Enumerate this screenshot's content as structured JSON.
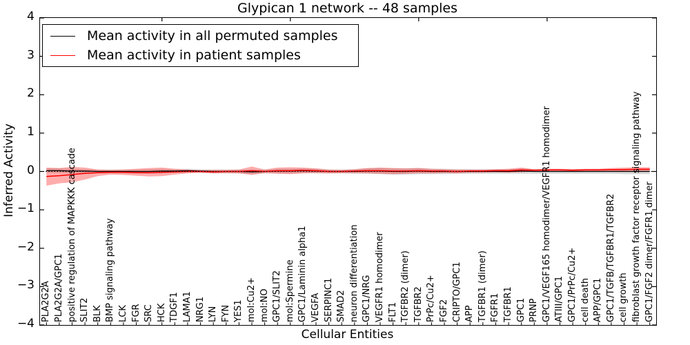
{
  "chart_data": {
    "type": "line",
    "title": "Glypican 1 network -- 48 samples",
    "xlabel": "Cellular Entities",
    "ylabel": "Inferred Activity",
    "ylim": [
      -4,
      4
    ],
    "ytick_values": [
      4,
      3,
      2,
      1,
      0,
      -1,
      -2,
      -3,
      -4
    ],
    "ytick_labels": [
      "4",
      "3",
      "2",
      "1",
      "0",
      "−1",
      "−2",
      "−3",
      "−4"
    ],
    "grid": false,
    "legend_position": "upper left",
    "zero_line": "dotted",
    "categories": [
      "PLA2G2A",
      "PLA2G2A/GPC1",
      "positive regulation of MAPKKK cascade",
      "SLIT2",
      "BLK",
      "BMP signaling pathway",
      "LCK",
      "FGR",
      "SRC",
      "HCK",
      "TDGF1",
      "LAMA1",
      "NRG1",
      "LYN",
      "FYN",
      "YES1",
      "mol:Cu2+",
      "mol:NO",
      "GPC1/SLIT2",
      "mol:Spermine",
      "GPC1/Laminin alpha1",
      "VEGFA",
      "SERPINC1",
      "SMAD2",
      "neuron differentiation",
      "GPC1/NRG",
      "VEGFR1 homodimer",
      "FLT1",
      "TGFBR2 (dimer)",
      "TGFBR2",
      "PrPc/Cu2+",
      "FGF2",
      "CRIPTO/GPC1",
      "APP",
      "TGFBR1 (dimer)",
      "FGFR1",
      "TGFBR1",
      "GPC1",
      "PRNP",
      "GPC1/VEGF165 homodimer/VEGFR1 homodimer",
      "ATIII/GPC1",
      "GPC1/PrPc/Cu2+",
      "cell death",
      "APP/GPC1",
      "GPC1/TGFB/TGFBR1/TGFBR2",
      "cell growth",
      "fibroblast growth factor receptor signaling pathway",
      "GPC1/FGF2 dimer/FGFR1 dimer"
    ],
    "series": [
      {
        "name": "Mean activity in all permuted samples",
        "color": "#000000",
        "values": [
          0.02,
          0.02,
          0.01,
          0.01,
          0.0,
          0.0,
          0.0,
          0.0,
          0.0,
          0.01,
          0.01,
          0.02,
          0.01,
          0.0,
          0.0,
          0.0,
          -0.01,
          0.0,
          0.01,
          0.01,
          0.02,
          0.01,
          0.0,
          0.0,
          0.0,
          0.01,
          0.01,
          0.0,
          0.0,
          0.01,
          0.0,
          0.0,
          0.0,
          0.0,
          0.0,
          0.0,
          0.0,
          0.01,
          0.0,
          0.0,
          0.0,
          0.0,
          0.0,
          0.0,
          0.0,
          0.0,
          0.0,
          0.0
        ],
        "band_halfwidth": [
          0.06,
          0.06,
          0.06,
          0.05,
          0.05,
          0.05,
          0.05,
          0.05,
          0.06,
          0.06,
          0.05,
          0.05,
          0.05,
          0.05,
          0.05,
          0.05,
          0.06,
          0.05,
          0.06,
          0.06,
          0.06,
          0.06,
          0.05,
          0.05,
          0.06,
          0.07,
          0.08,
          0.08,
          0.08,
          0.08,
          0.07,
          0.07,
          0.06,
          0.06,
          0.06,
          0.06,
          0.06,
          0.07,
          0.06,
          0.06,
          0.06,
          0.06,
          0.06,
          0.06,
          0.06,
          0.07,
          0.07,
          0.07
        ],
        "band_color": "#bfbfbf",
        "band_opacity": 0.6
      },
      {
        "name": "Mean activity in patient samples",
        "color": "#ff0000",
        "values": [
          -0.13,
          -0.11,
          -0.08,
          -0.05,
          -0.03,
          -0.02,
          -0.02,
          -0.03,
          -0.03,
          -0.02,
          -0.01,
          0.0,
          0.0,
          -0.01,
          0.0,
          0.0,
          0.02,
          0.0,
          0.02,
          0.02,
          0.03,
          0.02,
          0.0,
          0.0,
          0.01,
          0.02,
          0.02,
          0.01,
          0.01,
          0.02,
          0.01,
          0.01,
          0.0,
          0.01,
          0.01,
          0.02,
          0.02,
          0.04,
          0.03,
          0.04,
          0.04,
          0.03,
          0.04,
          0.04,
          0.05,
          0.05,
          0.06,
          0.06
        ],
        "band_upper": [
          0.1,
          0.09,
          0.12,
          0.1,
          0.05,
          0.04,
          0.05,
          0.07,
          0.09,
          0.1,
          0.07,
          0.05,
          0.03,
          0.04,
          0.04,
          0.05,
          0.13,
          0.05,
          0.1,
          0.11,
          0.1,
          0.08,
          0.05,
          0.04,
          0.06,
          0.09,
          0.1,
          0.09,
          0.08,
          0.09,
          0.07,
          0.06,
          0.05,
          0.05,
          0.05,
          0.06,
          0.07,
          0.1,
          0.06,
          0.07,
          0.07,
          0.06,
          0.07,
          0.07,
          0.09,
          0.1,
          0.11,
          0.11
        ],
        "band_lower": [
          -0.37,
          -0.31,
          -0.28,
          -0.21,
          -0.12,
          -0.08,
          -0.09,
          -0.11,
          -0.13,
          -0.12,
          -0.08,
          -0.05,
          -0.03,
          -0.05,
          -0.04,
          -0.05,
          -0.09,
          -0.04,
          -0.06,
          -0.07,
          -0.05,
          -0.04,
          -0.05,
          -0.04,
          -0.04,
          -0.05,
          -0.06,
          -0.07,
          -0.06,
          -0.05,
          -0.05,
          -0.04,
          -0.05,
          -0.03,
          -0.03,
          -0.02,
          -0.03,
          -0.02,
          0.0,
          0.01,
          0.01,
          0.0,
          0.01,
          0.01,
          0.01,
          0.0,
          0.01,
          0.01
        ],
        "band_color": "#ff0000",
        "band_opacity": 0.32
      }
    ]
  }
}
